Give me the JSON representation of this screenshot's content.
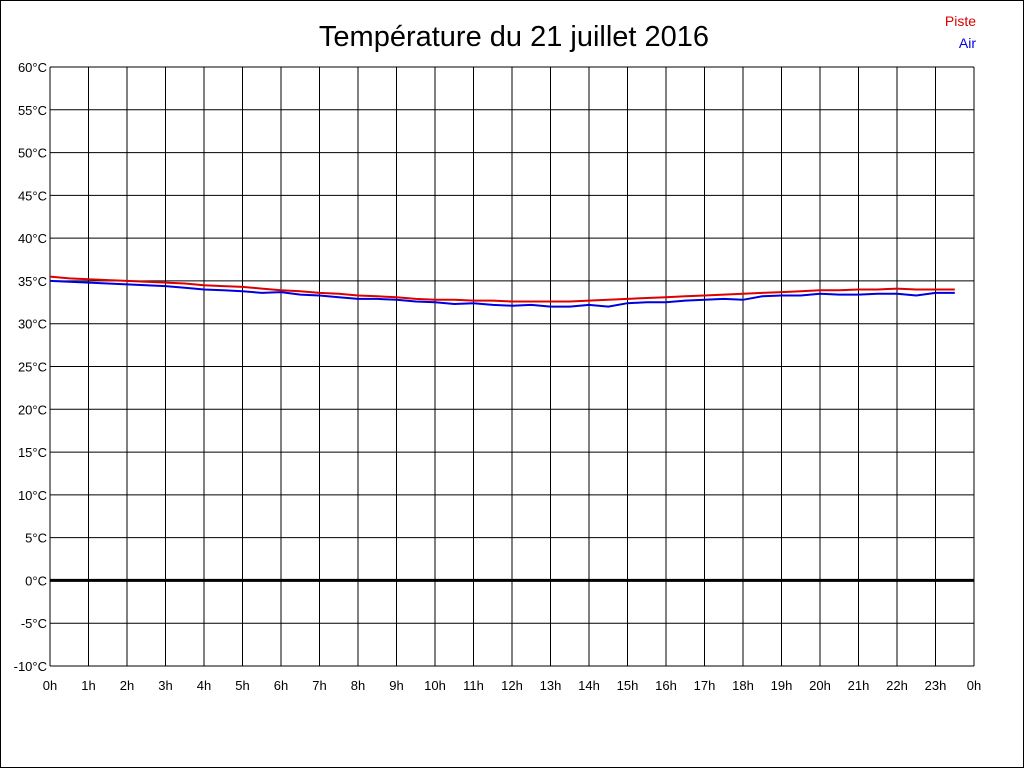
{
  "chart_data": {
    "type": "line",
    "title": "Température du 21 juillet 2016",
    "xlabel": "",
    "ylabel": "",
    "x_ticks": [
      "0h",
      "1h",
      "2h",
      "3h",
      "4h",
      "5h",
      "6h",
      "7h",
      "8h",
      "9h",
      "10h",
      "11h",
      "12h",
      "13h",
      "14h",
      "15h",
      "16h",
      "17h",
      "18h",
      "19h",
      "20h",
      "21h",
      "22h",
      "23h",
      "0h"
    ],
    "y_ticks": [
      "60°C",
      "55°C",
      "50°C",
      "45°C",
      "40°C",
      "35°C",
      "30°C",
      "25°C",
      "20°C",
      "15°C",
      "10°C",
      "5°C",
      "0°C",
      "-5°C",
      "-10°C"
    ],
    "xlim": [
      0,
      24
    ],
    "ylim": [
      -10,
      60
    ],
    "grid": true,
    "zero_line": true,
    "legend_position": "top-right",
    "series": [
      {
        "name": "Piste",
        "color": "#dd0000",
        "x": [
          0,
          0.5,
          1,
          1.5,
          2,
          2.5,
          3,
          3.5,
          4,
          4.5,
          5,
          5.5,
          6,
          6.5,
          7,
          7.5,
          8,
          8.5,
          9,
          9.5,
          10,
          10.5,
          11,
          11.5,
          12,
          12.5,
          13,
          13.5,
          14,
          14.5,
          15,
          15.5,
          16,
          16.5,
          17,
          17.5,
          18,
          18.5,
          19,
          19.5,
          20,
          20.5,
          21,
          21.5,
          22,
          22.5,
          23,
          23.5
        ],
        "y": [
          35.5,
          35.3,
          35.2,
          35.1,
          35.0,
          34.9,
          34.8,
          34.7,
          34.5,
          34.4,
          34.3,
          34.1,
          33.9,
          33.8,
          33.6,
          33.5,
          33.3,
          33.2,
          33.1,
          32.9,
          32.8,
          32.8,
          32.7,
          32.7,
          32.6,
          32.6,
          32.6,
          32.6,
          32.7,
          32.8,
          32.9,
          33.0,
          33.1,
          33.2,
          33.3,
          33.4,
          33.5,
          33.6,
          33.7,
          33.8,
          33.9,
          33.9,
          34.0,
          34.0,
          34.1,
          34.0,
          34.0,
          34.0
        ]
      },
      {
        "name": "Air",
        "color": "#0000dd",
        "x": [
          0,
          0.5,
          1,
          1.5,
          2,
          2.5,
          3,
          3.5,
          4,
          4.5,
          5,
          5.5,
          6,
          6.5,
          7,
          7.5,
          8,
          8.5,
          9,
          9.5,
          10,
          10.5,
          11,
          11.5,
          12,
          12.5,
          13,
          13.5,
          14,
          14.5,
          15,
          15.5,
          16,
          16.5,
          17,
          17.5,
          18,
          18.5,
          19,
          19.5,
          20,
          20.5,
          21,
          21.5,
          22,
          22.5,
          23,
          23.5
        ],
        "y": [
          35.0,
          34.9,
          34.8,
          34.7,
          34.6,
          34.5,
          34.4,
          34.2,
          34.0,
          33.9,
          33.8,
          33.6,
          33.7,
          33.4,
          33.3,
          33.1,
          32.9,
          32.9,
          32.8,
          32.6,
          32.5,
          32.3,
          32.4,
          32.2,
          32.1,
          32.2,
          32.0,
          32.0,
          32.2,
          32.0,
          32.4,
          32.5,
          32.5,
          32.7,
          32.8,
          32.9,
          32.8,
          33.2,
          33.3,
          33.3,
          33.5,
          33.4,
          33.4,
          33.5,
          33.5,
          33.3,
          33.6,
          33.6
        ]
      }
    ]
  }
}
